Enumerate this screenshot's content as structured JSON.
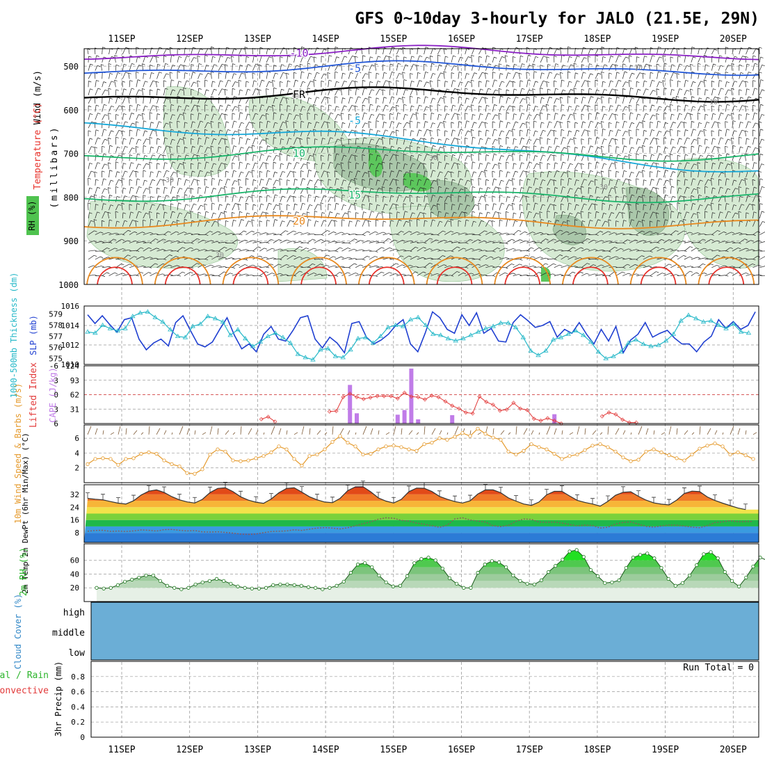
{
  "title": "GFS 0~10day 3-hourly for JALO (21.5E, 29N)",
  "date_labels": [
    "11SEP",
    "12SEP",
    "13SEP",
    "14SEP",
    "15SEP",
    "16SEP",
    "17SEP",
    "18SEP",
    "19SEP",
    "20SEP"
  ],
  "colors": {
    "temp_red": "#e8312a",
    "temp_orange": "#e8891f",
    "temp_green": "#19b56a",
    "temp_cyan": "#17a8d8",
    "temp_blue": "#2156d6",
    "temp_purple": "#8a1fc4",
    "rh_fill": "#d6ead3",
    "rh_fill2": "#aac7aa",
    "slp_line": "#1f3fd1",
    "thickness_line": "#25b8c8",
    "cape_bar": "#c07ce8",
    "li_line": "#e23a3a",
    "wind_line": "#e59a2c",
    "rh2m_fill": "#35c935",
    "cloud_fill": "#6baed6",
    "grid": "#999999"
  },
  "chart_data": [
    {
      "panel": "upper_air",
      "type": "contour",
      "ylabel_parts": [
        "Wind (m/s)",
        "Temperature (°C)",
        "RH (%)"
      ],
      "yaxis_label": "(millibars)",
      "ylim": [
        1000,
        460
      ],
      "yticks": [
        500,
        600,
        700,
        800,
        900,
        1000
      ],
      "temperature_contours": [
        {
          "label": "-10",
          "level_mb": 470
        },
        {
          "label": "-5",
          "level_mb": 505
        },
        {
          "label": "FR",
          "level_mb": 565
        },
        {
          "label": "-5",
          "level_mb": 625
        },
        {
          "label": "10",
          "level_mb": 700
        },
        {
          "label": "15",
          "level_mb": 795
        },
        {
          "label": "20",
          "level_mb": 855
        }
      ],
      "rh_contour_labels": [
        "30",
        "30",
        "30",
        "10",
        "10",
        "30",
        "30"
      ]
    },
    {
      "panel": "slp_thickness",
      "type": "line",
      "left_axis": {
        "label": "1000-500mb Thickness (dm)",
        "ticks": [
          575,
          576,
          577,
          578,
          579
        ]
      },
      "right_axis": {
        "label": "SLP (mb)",
        "ticks": [
          1010,
          1012,
          1014,
          1016
        ]
      },
      "series": [
        {
          "name": "SLP",
          "axis": "right",
          "values": [
            1015.1,
            1014.2,
            1015.0,
            1014.1,
            1013.3,
            1014.6,
            1014.8,
            1012.6,
            1011.5,
            1012.2,
            1012.6,
            1011.9,
            1014.3,
            1015.0,
            1013.5,
            1012.1,
            1011.8,
            1012.3,
            1013.6,
            1014.8,
            1013.0,
            1011.6,
            1012.1,
            1011.3,
            1013.1,
            1013.9,
            1012.6,
            1012.4,
            1013.5,
            1014.8,
            1015.0,
            1012.6,
            1011.7,
            1012.8,
            1012.2,
            1011.2,
            1014.2,
            1014.4,
            1012.8,
            1012.1,
            1012.5,
            1013.1,
            1014.0,
            1014.6,
            1012.1,
            1011.3,
            1013.2,
            1015.4,
            1014.8,
            1013.6,
            1013.2,
            1015.1,
            1014.0,
            1015.3,
            1013.2,
            1013.7,
            1012.4,
            1012.3,
            1014.3,
            1015.1,
            1014.5,
            1013.8,
            1014.0,
            1014.4,
            1012.8,
            1013.6,
            1013.2,
            1014.3,
            1013.1,
            1012.1,
            1013.6,
            1012.4,
            1013.9,
            1011.2,
            1012.5,
            1013.1,
            1014.3,
            1012.8,
            1013.2,
            1013.5,
            1012.7,
            1012.1,
            1012.1,
            1011.3,
            1012.3,
            1012.9,
            1014.6,
            1013.7,
            1014.4,
            1013.6,
            1014.0,
            1015.4
          ]
        },
        {
          "name": "Thickness",
          "axis": "left",
          "values": [
            577.4,
            577.3,
            578.0,
            577.7,
            577.5,
            577.7,
            578.8,
            579.1,
            579.2,
            578.7,
            578.3,
            577.6,
            577.0,
            576.9,
            577.9,
            578.1,
            578.8,
            578.6,
            578.3,
            577.1,
            577.6,
            576.8,
            576.1,
            576.5,
            577.0,
            577.3,
            576.9,
            576.4,
            575.4,
            575.1,
            574.9,
            575.8,
            575.9,
            575.2,
            575.1,
            575.8,
            576.8,
            576.9,
            576.4,
            577.0,
            577.8,
            578.0,
            577.9,
            578.5,
            578.7,
            578.0,
            577.2,
            577.1,
            576.8,
            576.6,
            576.8,
            577.1,
            577.4,
            577.7,
            577.9,
            578.2,
            578.2,
            577.8,
            576.9,
            575.7,
            575.3,
            575.7,
            576.7,
            576.9,
            577.2,
            577.5,
            577.1,
            576.5,
            575.6,
            575.0,
            575.2,
            575.6,
            576.4,
            576.7,
            576.3,
            576.1,
            576.2,
            576.6,
            577.2,
            578.4,
            578.9,
            578.6,
            578.3,
            578.4,
            578.0,
            577.7,
            578.1,
            577.4,
            577.3
          ]
        }
      ]
    },
    {
      "panel": "cape_li",
      "type": "bar",
      "left_axis": {
        "label": "Lifted Index",
        "ticks": [
          -6,
          -3,
          0,
          3,
          6
        ]
      },
      "right_axis": {
        "label": "CAPE (J/kg)",
        "ticks": [
          31,
          62,
          93,
          124
        ]
      },
      "cape_values": [
        0,
        0,
        0,
        0,
        0,
        0,
        0,
        0,
        0,
        0,
        0,
        0,
        0,
        0,
        0,
        0,
        0,
        0,
        0,
        0,
        0,
        0,
        0,
        0,
        0,
        0,
        0,
        0,
        0,
        0,
        0,
        0,
        0,
        0,
        0,
        0,
        0,
        0,
        0,
        83,
        22,
        0,
        0,
        0,
        0,
        0,
        19,
        29,
        118,
        9,
        0,
        0,
        0,
        0,
        18,
        0,
        0,
        0,
        0,
        0,
        0,
        0,
        0,
        0,
        0,
        0,
        0,
        0,
        0,
        20,
        0,
        0,
        0,
        0,
        0,
        0,
        0,
        0,
        0,
        0,
        0,
        0,
        0,
        0,
        0,
        0,
        0,
        0,
        0,
        0,
        0,
        0,
        0
      ],
      "li_values": [
        null,
        null,
        null,
        null,
        null,
        null,
        null,
        null,
        null,
        null,
        null,
        null,
        null,
        null,
        null,
        null,
        null,
        null,
        null,
        null,
        null,
        null,
        null,
        null,
        null,
        null,
        5.1,
        4.6,
        5.6,
        null,
        null,
        null,
        null,
        null,
        null,
        null,
        3.5,
        3.4,
        0.5,
        -0.2,
        0.5,
        0.9,
        0.6,
        0.3,
        0.3,
        0.3,
        0.8,
        -0.4,
        0.4,
        0.5,
        1.0,
        0.2,
        0.5,
        1.4,
        2.3,
        2.9,
        3.7,
        3.9,
        0.4,
        1.5,
        2.1,
        3.3,
        3.1,
        1.7,
        2.9,
        3.2,
        5.0,
        5.4,
        4.9,
        5.4,
        6.0,
        null,
        null,
        null,
        null,
        null,
        4.5,
        3.7,
        4.1,
        5.2,
        5.8,
        5.8,
        null,
        null,
        null,
        null,
        null,
        null,
        null,
        null,
        null
      ]
    },
    {
      "panel": "wind10m",
      "type": "line",
      "ylabel": "10m Wind Speed & Barbs (m/s)",
      "yticks": [
        2,
        4,
        6
      ],
      "series": [
        {
          "name": "10m Wind Speed",
          "values": [
            2.5,
            3.2,
            3.3,
            3.2,
            2.4,
            3.2,
            3.3,
            3.9,
            4.1,
            3.9,
            3.0,
            2.5,
            2.2,
            1.3,
            1.2,
            1.8,
            3.8,
            4.5,
            4.2,
            3.0,
            2.9,
            3.0,
            3.3,
            3.6,
            4.1,
            4.9,
            4.5,
            3.2,
            2.3,
            3.6,
            3.8,
            4.5,
            5.5,
            6.3,
            5.4,
            4.9,
            3.8,
            3.9,
            4.5,
            4.9,
            5.0,
            4.8,
            4.5,
            4.3,
            5.2,
            5.4,
            6.0,
            5.8,
            6.2,
            6.7,
            6.3,
            7.3,
            6.6,
            6.1,
            5.8,
            4.2,
            3.8,
            4.3,
            5.2,
            4.8,
            4.5,
            3.9,
            3.2,
            3.6,
            3.8,
            4.4,
            5.0,
            5.2,
            4.8,
            4.2,
            3.4,
            2.9,
            3.1,
            4.2,
            4.5,
            4.1,
            3.7,
            3.3,
            3.0,
            3.8,
            4.6,
            5.0,
            5.3,
            4.9,
            3.8,
            4.1,
            3.7,
            3.2
          ]
        }
      ]
    },
    {
      "panel": "temp2m",
      "type": "area",
      "ylabel": "2m Temp 2m DewPt (6hr Min/Max) (°C)",
      "yticks": [
        8,
        16,
        24,
        32
      ],
      "series": [
        {
          "name": "2m Temp",
          "values": [
            29.5,
            29.0,
            28.6,
            27.5,
            26.5,
            26.0,
            28.0,
            31.6,
            34.0,
            34.8,
            33.2,
            30.6,
            28.6,
            27.3,
            26.6,
            28.9,
            33.1,
            35.7,
            36.1,
            33.7,
            30.5,
            28.4,
            27.1,
            26.4,
            29.1,
            33.0,
            35.7,
            36.1,
            33.4,
            30.5,
            28.6,
            27.2,
            26.8,
            29.5,
            34.3,
            36.7,
            36.8,
            33.6,
            29.8,
            27.8,
            26.6,
            28.9,
            33.7,
            35.9,
            35.8,
            33.8,
            30.7,
            29.0,
            27.5,
            26.6,
            28.0,
            32.2,
            34.8,
            34.8,
            33.0,
            29.8,
            27.8,
            26.0,
            25.1,
            27.2,
            31.7,
            33.9,
            33.9,
            31.0,
            28.3,
            27.0,
            26.0,
            24.7,
            27.6,
            31.4,
            33.3,
            33.6,
            30.8,
            28.4,
            26.7,
            25.9,
            25.4,
            28.4,
            32.6,
            34.0,
            33.7,
            30.4,
            28.2,
            26.5,
            25.0,
            23.5,
            22.5
          ]
        },
        {
          "name": "2m DewPt",
          "values": [
            9.0,
            9.5,
            9.6,
            8.9,
            9.1,
            8.8,
            9.2,
            9.8,
            9.6,
            9.1,
            10.0,
            10.1,
            9.6,
            9.2,
            9.4,
            8.6,
            8.5,
            8.7,
            8.3,
            7.8,
            7.2,
            7.0,
            7.3,
            8.1,
            8.8,
            9.0,
            9.2,
            9.9,
            9.5,
            10.3,
            11.0,
            11.3,
            11.0,
            10.4,
            11.2,
            12.4,
            13.7,
            14.9,
            16.5,
            17.4,
            17.1,
            15.8,
            15.3,
            14.1,
            13.4,
            12.5,
            11.4,
            12.8,
            16.7,
            17.4,
            16.0,
            15.3,
            14.7,
            12.4,
            11.9,
            12.7,
            15.2,
            16.6,
            16.4,
            14.7,
            14.6,
            14.7,
            14.1,
            13.2,
            12.4,
            12.8,
            12.6,
            11.0,
            11.5,
            13.5,
            14.5,
            14.8,
            13.4,
            12.0,
            11.6,
            12.3,
            12.9,
            12.8,
            12.2,
            11.6,
            11.2,
            12.5,
            14.4,
            14.8,
            15.6,
            14.9,
            15.0,
            15.1
          ]
        }
      ]
    },
    {
      "panel": "rh2m",
      "type": "area",
      "ylabel": "2m RH (%)",
      "yticks": [
        20,
        40,
        60
      ],
      "series": [
        {
          "name": "2m RH",
          "values": [
            20,
            19,
            20,
            24,
            29,
            32,
            35,
            38,
            38,
            30,
            23,
            20,
            18,
            20,
            25,
            28,
            30,
            33,
            30,
            26,
            22,
            20,
            19,
            19,
            20,
            24,
            25,
            25,
            24,
            23,
            21,
            20,
            18,
            20,
            23,
            29,
            42,
            54,
            56,
            50,
            38,
            28,
            22,
            23,
            37,
            56,
            62,
            64,
            60,
            48,
            34,
            26,
            20,
            20,
            42,
            54,
            59,
            57,
            50,
            38,
            30,
            26,
            25,
            31,
            43,
            52,
            61,
            73,
            75,
            65,
            46,
            37,
            27,
            28,
            31,
            49,
            64,
            68,
            70,
            63,
            49,
            33,
            23,
            27,
            38,
            53,
            69,
            72,
            63,
            43,
            30,
            22,
            35,
            51,
            64,
            60
          ]
        }
      ]
    },
    {
      "panel": "cloud",
      "type": "area",
      "ylabel": "Cloud Cover (%)",
      "yticks": [
        "high",
        "middle",
        "low"
      ]
    },
    {
      "panel": "precip",
      "type": "bar",
      "ylabel_parts": [
        "Total / Rain",
        "Convective"
      ],
      "ylabel": "3hr Precip (mm)",
      "yticks": [
        0,
        0.2,
        0.4,
        0.6,
        0.8
      ],
      "ylim": [
        0,
        1
      ],
      "annotation": "Run Total = 0",
      "values": []
    }
  ]
}
